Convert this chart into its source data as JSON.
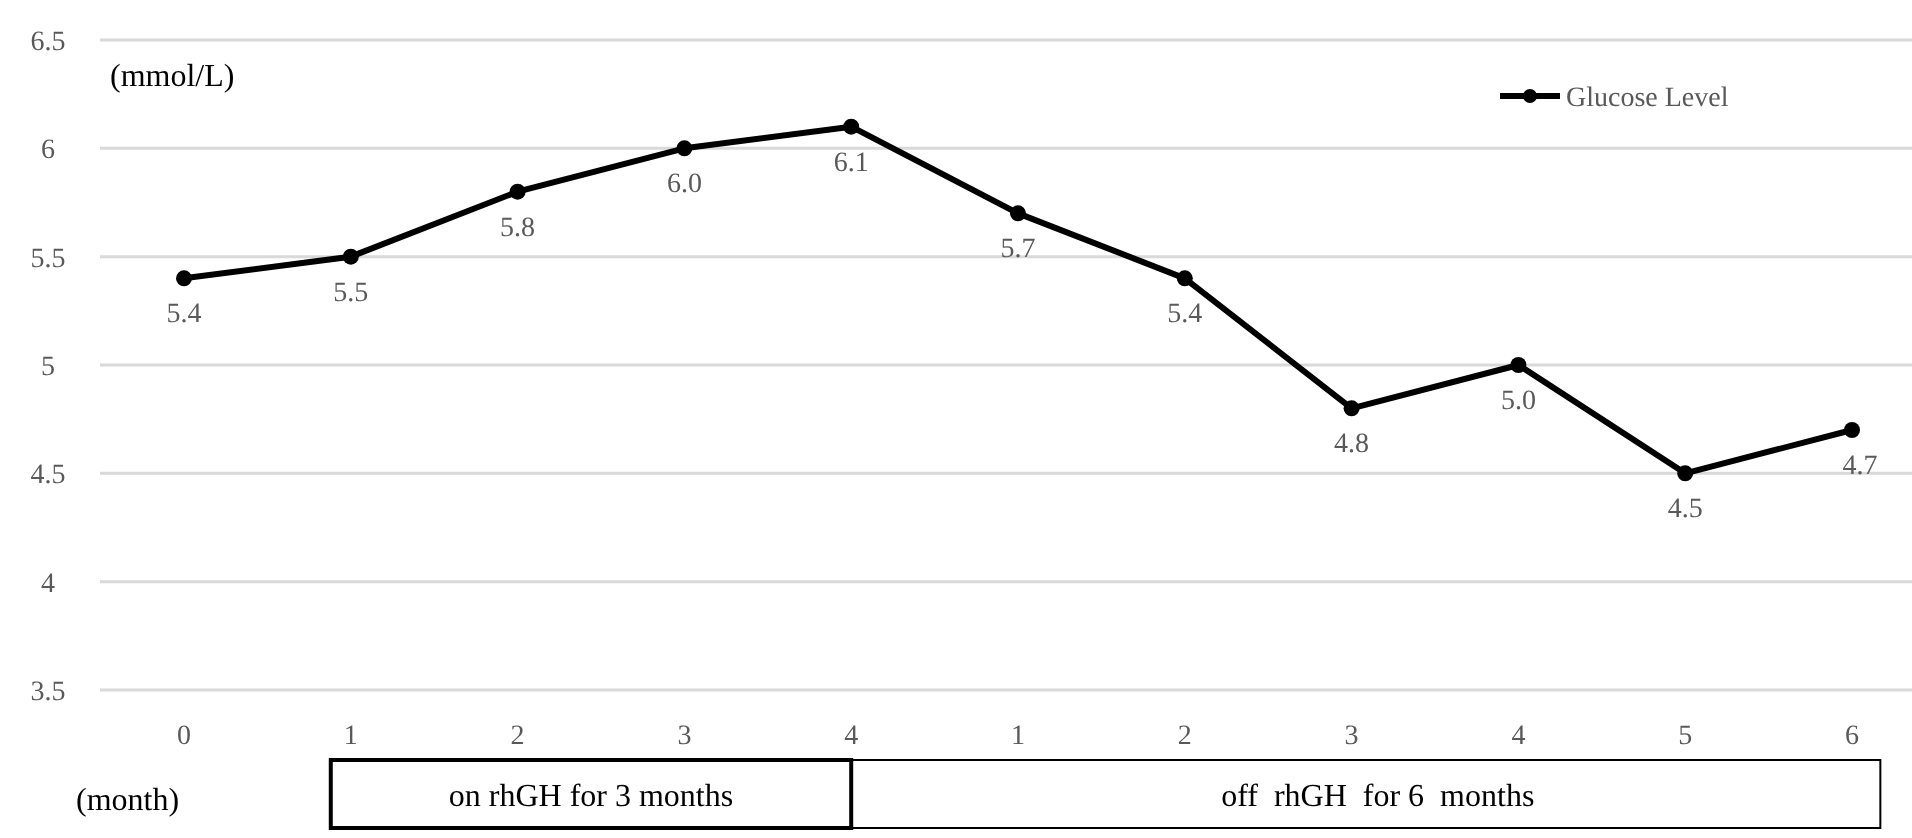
{
  "chart_data": {
    "type": "line",
    "ylabel": "(mmol/L)",
    "xlabel": "(month)",
    "categories": [
      "0",
      "1",
      "2",
      "3",
      "4",
      "1",
      "2",
      "3",
      "4",
      "5",
      "6"
    ],
    "series": [
      {
        "name": "Glucose Level",
        "color": "#000000",
        "values": [
          5.4,
          5.5,
          5.8,
          6.0,
          6.1,
          5.7,
          5.4,
          4.8,
          5.0,
          4.5,
          4.7
        ]
      }
    ],
    "ylim": [
      3.5,
      6.5
    ],
    "yticks": [
      3.5,
      4,
      4.5,
      5,
      5.5,
      6,
      6.5
    ],
    "grid": "y",
    "value_labels": [
      "5.4",
      "5.5",
      "5.8",
      "6.0",
      "6.1",
      "5.7",
      "5.4",
      "4.8",
      "5.0",
      "4.5",
      "4.7"
    ],
    "legend": "top right",
    "marker": "circle",
    "line_style": "solid",
    "annotations": [
      "on rhGH for 3 months",
      "off  rhGH  for 6  months"
    ]
  }
}
